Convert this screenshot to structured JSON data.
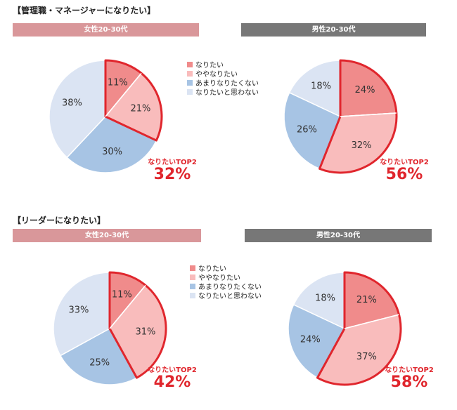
{
  "colors": {
    "nari_tai": "#f08b8b",
    "yaya_nari_tai": "#f9bcbc",
    "amari": "#a7c4e4",
    "omowanai": "#dbe4f3",
    "highlight": "#e0262d"
  },
  "legend": {
    "items": [
      "なりたい",
      "ややなりたい",
      "あまりなりたくない",
      "なりたいと思わない"
    ]
  },
  "chart_data": [
    {
      "type": "pie",
      "section": "【管理職・マネージャーになりたい】",
      "group": "女性20-30代",
      "categories": [
        "なりたい",
        "ややなりたい",
        "あまりなりたくない",
        "なりたいと思わない"
      ],
      "values": [
        11,
        21,
        30,
        38
      ],
      "labels": [
        "11%",
        "21%",
        "30%",
        "38%"
      ],
      "top2_label": "なりたいTOP2",
      "top2_value": "32%"
    },
    {
      "type": "pie",
      "section": "【管理職・マネージャーになりたい】",
      "group": "男性20-30代",
      "categories": [
        "なりたい",
        "ややなりたい",
        "あまりなりたくない",
        "なりたいと思わない"
      ],
      "values": [
        24,
        32,
        26,
        18
      ],
      "labels": [
        "24%",
        "32%",
        "26%",
        "18%"
      ],
      "top2_label": "なりたいTOP2",
      "top2_value": "56%"
    },
    {
      "type": "pie",
      "section": "【リーダーになりたい】",
      "group": "女性20-30代",
      "categories": [
        "なりたい",
        "ややなりたい",
        "あまりなりたくない",
        "なりたいと思わない"
      ],
      "values": [
        11,
        31,
        25,
        33
      ],
      "labels": [
        "11%",
        "31%",
        "25%",
        "33%"
      ],
      "top2_label": "なりたいTOP2",
      "top2_value": "42%"
    },
    {
      "type": "pie",
      "section": "【リーダーになりたい】",
      "group": "男性20-30代",
      "categories": [
        "なりたい",
        "ややなりたい",
        "あまりなりたくない",
        "なりたいと思わない"
      ],
      "values": [
        21,
        37,
        24,
        18
      ],
      "labels": [
        "21%",
        "37%",
        "24%",
        "18%"
      ],
      "top2_label": "なりたいTOP2",
      "top2_value": "58%"
    }
  ]
}
